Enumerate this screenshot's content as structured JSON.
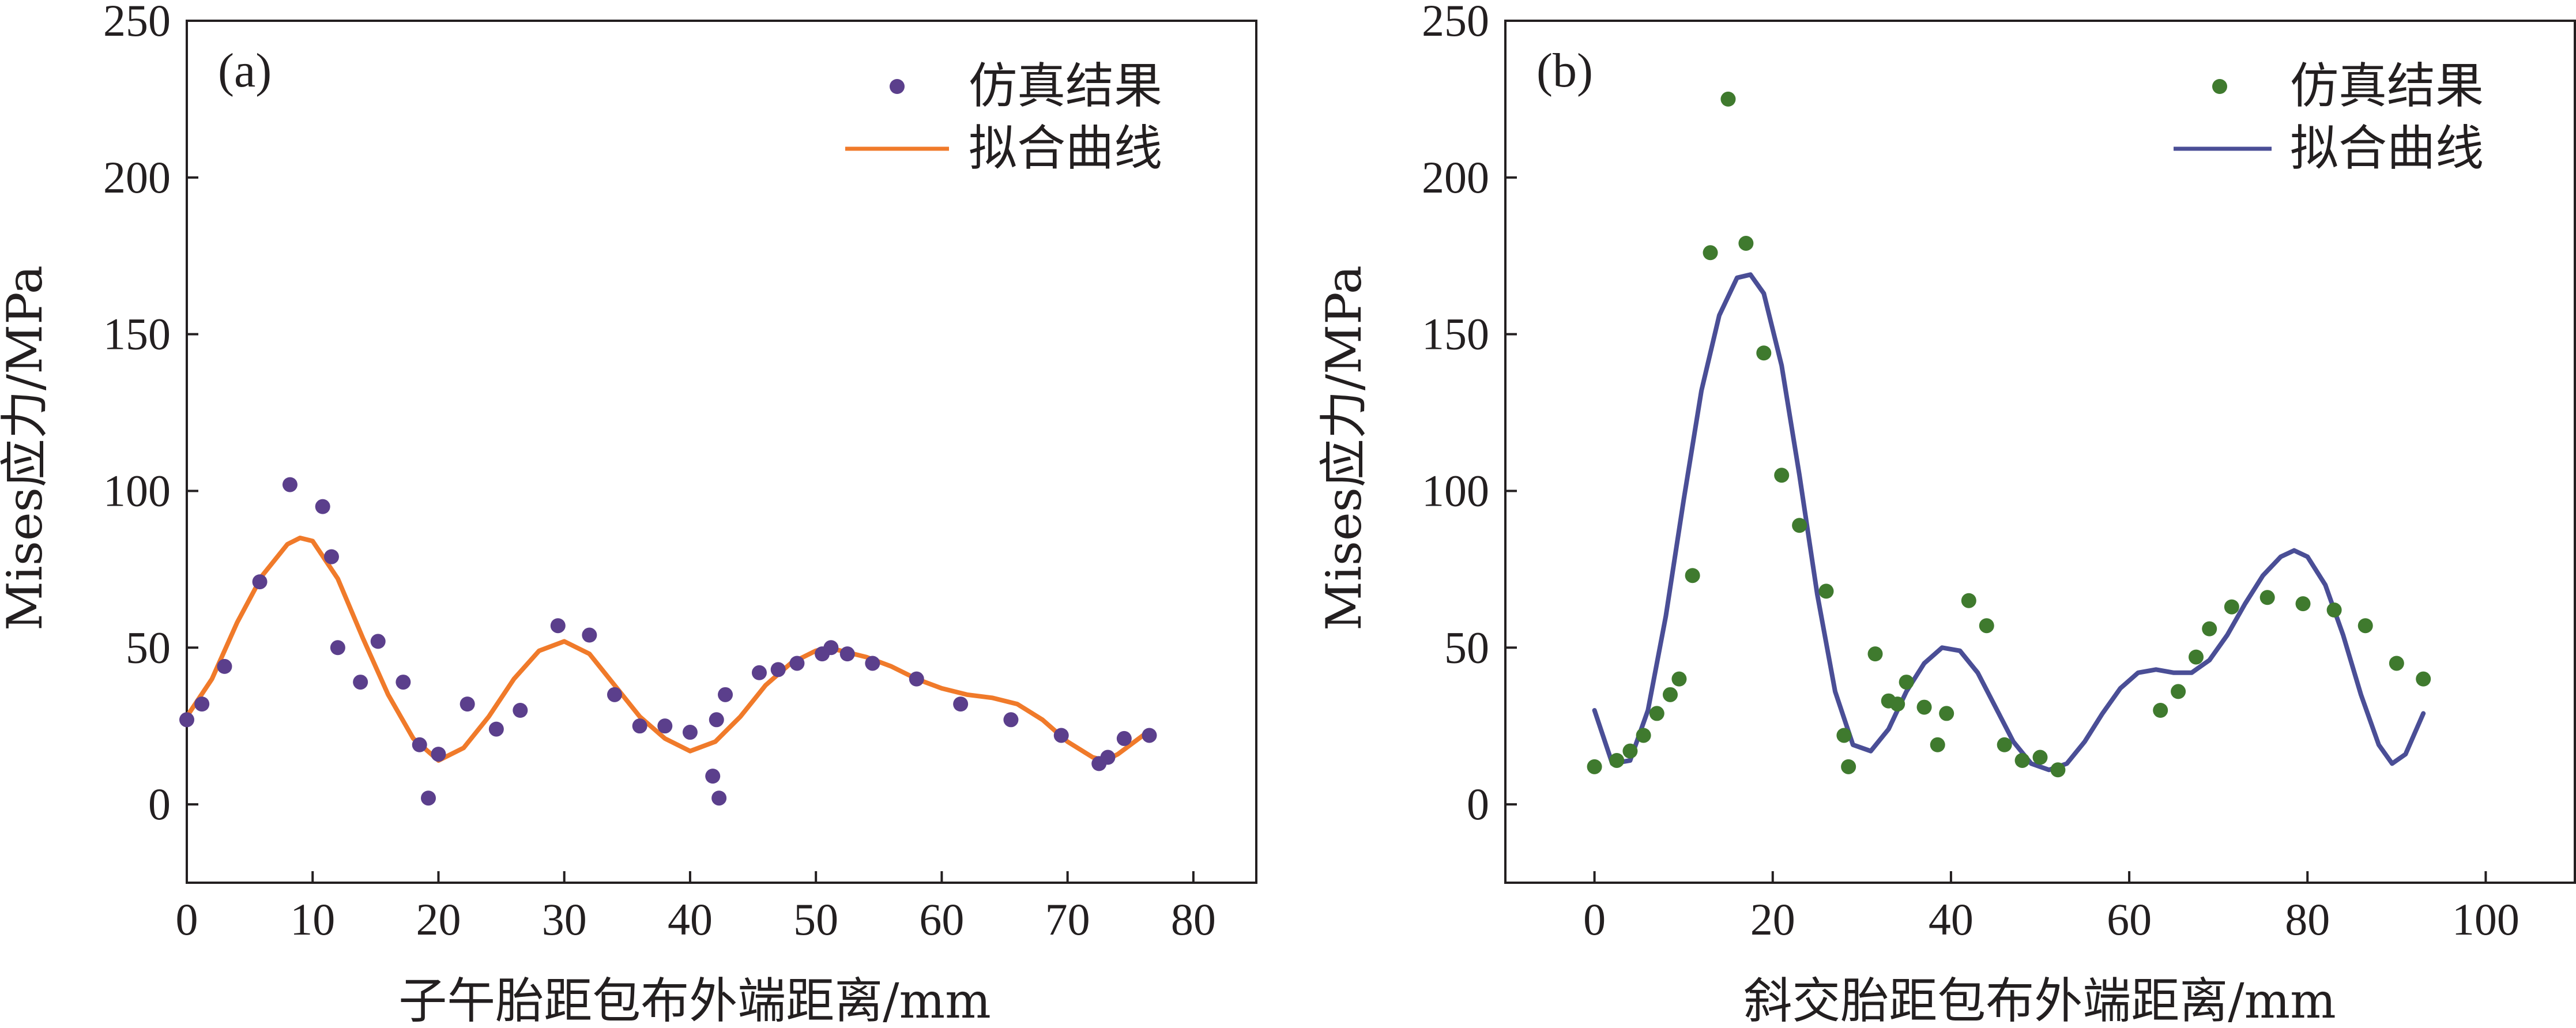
{
  "chart_data": [
    {
      "type": "scatter",
      "panel_label": "(a)",
      "xlabel": "子午胎距包布外端距离/mm",
      "ylabel": "Mises应力/MPa",
      "xlim": [
        0,
        85
      ],
      "ylim": [
        -25,
        250
      ],
      "xticks": [
        0,
        10,
        20,
        30,
        40,
        50,
        60,
        70,
        80
      ],
      "yticks": [
        0,
        50,
        100,
        150,
        200,
        250
      ],
      "legend_position": "top-right",
      "series": [
        {
          "name": "仿真结果",
          "kind": "scatter",
          "color": "#5b3f8c",
          "points": [
            [
              0,
              27
            ],
            [
              1.2,
              32
            ],
            [
              3,
              44
            ],
            [
              5.8,
              71
            ],
            [
              8.2,
              102
            ],
            [
              10.8,
              95
            ],
            [
              11.5,
              79
            ],
            [
              12,
              50
            ],
            [
              13.8,
              39
            ],
            [
              15.2,
              52
            ],
            [
              17.2,
              39
            ],
            [
              18.5,
              19
            ],
            [
              19.2,
              2
            ],
            [
              20,
              16
            ],
            [
              22.3,
              32
            ],
            [
              24.6,
              24
            ],
            [
              26.5,
              30
            ],
            [
              29.5,
              57
            ],
            [
              32,
              54
            ],
            [
              34,
              35
            ],
            [
              36,
              25
            ],
            [
              38,
              25
            ],
            [
              40,
              23
            ],
            [
              41.8,
              9
            ],
            [
              42.3,
              2
            ],
            [
              42.1,
              27
            ],
            [
              42.8,
              35
            ],
            [
              45.5,
              42
            ],
            [
              47,
              43
            ],
            [
              48.5,
              45
            ],
            [
              50.5,
              48
            ],
            [
              51.2,
              50
            ],
            [
              52.5,
              48
            ],
            [
              54.5,
              45
            ],
            [
              58,
              40
            ],
            [
              61.5,
              32
            ],
            [
              65.5,
              27
            ],
            [
              69.5,
              22
            ],
            [
              72.5,
              13
            ],
            [
              73.2,
              15
            ],
            [
              74.5,
              21
            ],
            [
              76.5,
              22
            ]
          ]
        },
        {
          "name": "拟合曲线",
          "kind": "line",
          "color": "#f07a2a",
          "points": [
            [
              0,
              28
            ],
            [
              2,
              40
            ],
            [
              4,
              58
            ],
            [
              6,
              73
            ],
            [
              8,
              83
            ],
            [
              9,
              85
            ],
            [
              10,
              84
            ],
            [
              12,
              72
            ],
            [
              14,
              53
            ],
            [
              16,
              35
            ],
            [
              18,
              21
            ],
            [
              20,
              14
            ],
            [
              22,
              18
            ],
            [
              24,
              28
            ],
            [
              26,
              40
            ],
            [
              28,
              49
            ],
            [
              30,
              52
            ],
            [
              32,
              48
            ],
            [
              34,
              38
            ],
            [
              36,
              28
            ],
            [
              38,
              21
            ],
            [
              40,
              17
            ],
            [
              42,
              20
            ],
            [
              44,
              28
            ],
            [
              46,
              38
            ],
            [
              48,
              45
            ],
            [
              50,
              49
            ],
            [
              51,
              50
            ],
            [
              52,
              49
            ],
            [
              54,
              47
            ],
            [
              56,
              44
            ],
            [
              58,
              40
            ],
            [
              60,
              37
            ],
            [
              62,
              35
            ],
            [
              64,
              34
            ],
            [
              66,
              32
            ],
            [
              68,
              27
            ],
            [
              70,
              20
            ],
            [
              72,
              15
            ],
            [
              73,
              14
            ],
            [
              74,
              16
            ],
            [
              76,
              22
            ]
          ]
        }
      ]
    },
    {
      "type": "scatter",
      "panel_label": "(b)",
      "xlabel": "斜交胎距包布外端距离/mm",
      "ylabel": "Mises应力/MPa",
      "xlim": [
        -10,
        110
      ],
      "ylim": [
        -25,
        250
      ],
      "xticks": [
        0,
        20,
        40,
        60,
        80,
        100
      ],
      "yticks": [
        0,
        50,
        100,
        150,
        200,
        250
      ],
      "legend_position": "top-right",
      "series": [
        {
          "name": "仿真结果",
          "kind": "scatter",
          "color": "#3f7a2e",
          "points": [
            [
              0,
              12
            ],
            [
              2.5,
              14
            ],
            [
              4,
              17
            ],
            [
              5.5,
              22
            ],
            [
              7,
              29
            ],
            [
              8.5,
              35
            ],
            [
              9.5,
              40
            ],
            [
              11,
              73
            ],
            [
              13,
              176
            ],
            [
              15,
              225
            ],
            [
              17,
              179
            ],
            [
              19,
              144
            ],
            [
              21,
              105
            ],
            [
              23,
              89
            ],
            [
              26,
              68
            ],
            [
              28,
              22
            ],
            [
              28.5,
              12
            ],
            [
              31.5,
              48
            ],
            [
              33,
              33
            ],
            [
              34,
              32
            ],
            [
              35,
              39
            ],
            [
              37,
              31
            ],
            [
              38.5,
              19
            ],
            [
              39.5,
              29
            ],
            [
              42,
              65
            ],
            [
              44,
              57
            ],
            [
              46,
              19
            ],
            [
              48,
              14
            ],
            [
              50,
              15
            ],
            [
              52,
              11
            ],
            [
              63.5,
              30
            ],
            [
              65.5,
              36
            ],
            [
              67.5,
              47
            ],
            [
              69,
              56
            ],
            [
              71.5,
              63
            ],
            [
              75.5,
              66
            ],
            [
              79.5,
              64
            ],
            [
              83,
              62
            ],
            [
              86.5,
              57
            ],
            [
              90,
              45
            ],
            [
              93,
              40
            ]
          ]
        },
        {
          "name": "拟合曲线",
          "kind": "line",
          "color": "#4a4e96",
          "points": [
            [
              0,
              30
            ],
            [
              2,
              13
            ],
            [
              4,
              14
            ],
            [
              6,
              30
            ],
            [
              8,
              60
            ],
            [
              10,
              97
            ],
            [
              12,
              132
            ],
            [
              14,
              156
            ],
            [
              16,
              168
            ],
            [
              17.5,
              169
            ],
            [
              19,
              163
            ],
            [
              21,
              140
            ],
            [
              23,
              105
            ],
            [
              25,
              67
            ],
            [
              27,
              36
            ],
            [
              29,
              19
            ],
            [
              31,
              17
            ],
            [
              33,
              24
            ],
            [
              35,
              36
            ],
            [
              37,
              45
            ],
            [
              39,
              50
            ],
            [
              41,
              49
            ],
            [
              43,
              42
            ],
            [
              45,
              31
            ],
            [
              47,
              20
            ],
            [
              49,
              13
            ],
            [
              51,
              11
            ],
            [
              53,
              13
            ],
            [
              55,
              20
            ],
            [
              57,
              29
            ],
            [
              59,
              37
            ],
            [
              61,
              42
            ],
            [
              63,
              43
            ],
            [
              65,
              42
            ],
            [
              67,
              42
            ],
            [
              69,
              46
            ],
            [
              71,
              54
            ],
            [
              73,
              64
            ],
            [
              75,
              73
            ],
            [
              77,
              79
            ],
            [
              78.5,
              81
            ],
            [
              80,
              79
            ],
            [
              82,
              70
            ],
            [
              84,
              54
            ],
            [
              86,
              35
            ],
            [
              88,
              19
            ],
            [
              89.5,
              13
            ],
            [
              91,
              16
            ],
            [
              93,
              29
            ]
          ]
        }
      ]
    }
  ]
}
